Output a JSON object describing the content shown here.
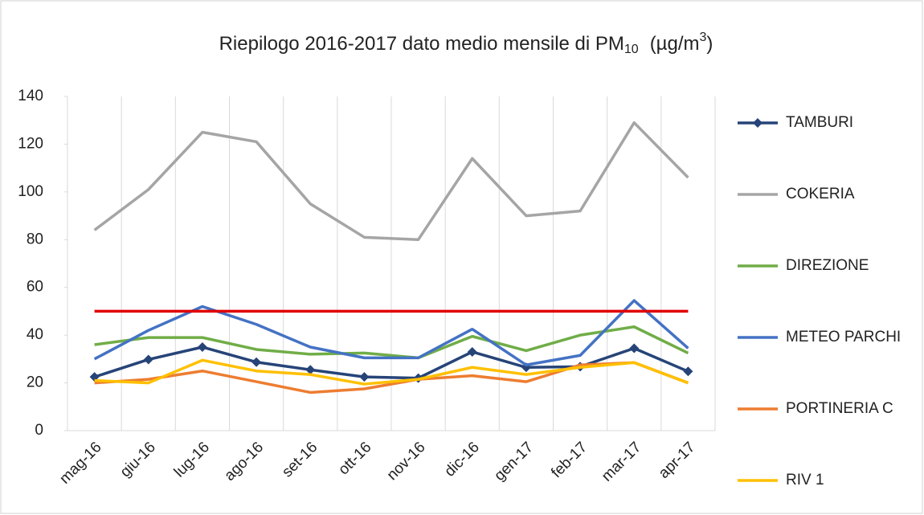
{
  "chart_data": {
    "type": "line",
    "title": [
      "Riepilogo 2016-2017 dato medio mensile di PM",
      "10",
      "(µg/m",
      "3",
      ")"
    ],
    "categories": [
      "mag-16",
      "giu-16",
      "lug-16",
      "ago-16",
      "set-16",
      "ott-16",
      "nov-16",
      "dic-16",
      "gen-17",
      "feb-17",
      "mar-17",
      "apr-17"
    ],
    "series": [
      {
        "name": "TAMBURI",
        "color": "#264478",
        "marker": "diamond",
        "values": [
          22.5,
          29.8,
          35,
          28.7,
          25.5,
          22.5,
          22,
          33,
          26.5,
          26.8,
          34.5,
          24.8
        ]
      },
      {
        "name": "COKERIA",
        "color": "#a5a5a5",
        "values": [
          84,
          101,
          125,
          121,
          95,
          81,
          80,
          114,
          90,
          92,
          129,
          106
        ]
      },
      {
        "name": "DIREZIONE",
        "color": "#70ad47",
        "values": [
          36,
          39,
          39,
          34,
          32,
          32.5,
          30.5,
          39.5,
          33.5,
          40,
          43.5,
          32.5
        ]
      },
      {
        "name": "METEO PARCHI",
        "color": "#4472c4",
        "values": [
          30,
          42,
          52,
          44.5,
          35,
          30.5,
          30.5,
          42.5,
          27.5,
          31.5,
          54.5,
          34.5
        ]
      },
      {
        "name": "PORTINERIA C",
        "color": "#ed7d31",
        "values": [
          20,
          21.5,
          25,
          20.5,
          16,
          17.5,
          21.5,
          23,
          20.5,
          27.5,
          28.5,
          20
        ]
      },
      {
        "name": "RIV 1",
        "color": "#ffc000",
        "values": [
          21,
          20,
          29.5,
          25,
          23.5,
          19.5,
          21.5,
          26.5,
          23.5,
          26.5,
          28.5,
          20
        ]
      }
    ],
    "reference_line": {
      "value": 50,
      "color": "#e00000"
    },
    "ylim": [
      0,
      140
    ],
    "yticks": [
      0,
      20,
      40,
      60,
      80,
      100,
      120,
      140
    ],
    "vertical_grid": true,
    "legend": "right"
  }
}
